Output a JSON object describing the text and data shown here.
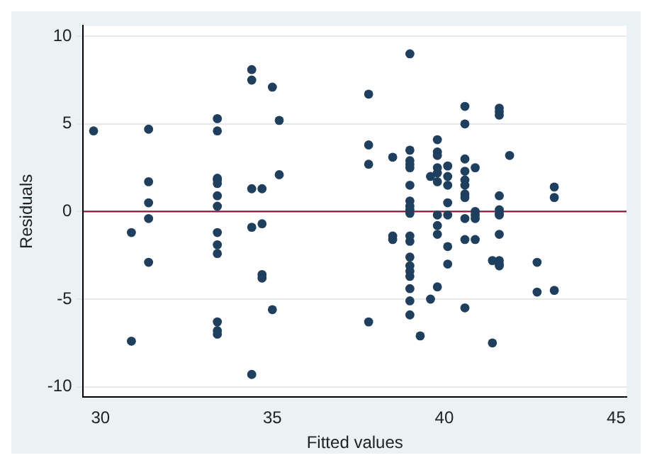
{
  "chart_data": {
    "type": "scatter",
    "xlabel": "Fitted values",
    "ylabel": "Residuals",
    "x": [
      29.8,
      30.9,
      30.9,
      31.4,
      31.4,
      31.4,
      31.4,
      31.4,
      33.4,
      33.4,
      33.4,
      33.4,
      33.4,
      33.4,
      33.4,
      33.4,
      33.4,
      33.4,
      33.4,
      33.4,
      33.4,
      34.4,
      34.4,
      34.4,
      34.4,
      34.4,
      34.7,
      34.7,
      34.7,
      34.7,
      35.0,
      35.0,
      35.2,
      35.2,
      37.8,
      37.8,
      37.8,
      37.8,
      38.5,
      38.5,
      38.5,
      39.0,
      39.0,
      39.0,
      39.0,
      39.0,
      39.0,
      39.0,
      39.0,
      39.0,
      39.0,
      39.0,
      39.0,
      39.0,
      39.0,
      39.0,
      39.0,
      39.0,
      39.0,
      39.0,
      39.3,
      39.6,
      39.6,
      39.8,
      39.8,
      39.8,
      39.8,
      39.8,
      39.8,
      39.8,
      39.8,
      39.8,
      39.8,
      40.1,
      40.1,
      40.1,
      40.1,
      40.1,
      40.1,
      40.1,
      40.6,
      40.6,
      40.6,
      40.6,
      40.6,
      40.6,
      40.6,
      40.6,
      40.6,
      40.6,
      40.6,
      40.9,
      40.9,
      40.9,
      40.9,
      40.9,
      41.4,
      41.4,
      41.6,
      41.6,
      41.6,
      41.6,
      41.6,
      41.6,
      41.6,
      41.6,
      41.6,
      41.6,
      41.6,
      41.9,
      42.7,
      42.7,
      43.2,
      43.2,
      43.2
    ],
    "values": [
      4.6,
      -1.2,
      -7.4,
      4.7,
      1.7,
      0.5,
      -0.4,
      -2.9,
      5.3,
      4.6,
      1.8,
      1.6,
      0.9,
      0.3,
      -1.2,
      -1.9,
      -2.4,
      -6.3,
      -6.8,
      -7.0,
      1.9,
      8.1,
      7.5,
      1.3,
      -0.9,
      -9.3,
      1.3,
      -0.7,
      -3.6,
      -3.8,
      7.1,
      -5.6,
      5.2,
      2.1,
      6.7,
      3.8,
      2.7,
      -6.3,
      3.1,
      -1.4,
      -1.6,
      9.0,
      3.5,
      2.9,
      2.7,
      2.5,
      1.5,
      0.6,
      0.3,
      0.1,
      -0.1,
      -1.4,
      -1.7,
      -2.6,
      -3.1,
      -3.4,
      -3.7,
      -4.4,
      -5.1,
      -5.9,
      -7.1,
      -5.0,
      2.0,
      4.1,
      3.4,
      3.2,
      2.5,
      2.2,
      1.7,
      -0.2,
      -0.8,
      -1.3,
      -4.3,
      2.6,
      2.0,
      1.5,
      0.5,
      -0.2,
      -2.0,
      -3.0,
      6.0,
      5.0,
      3.0,
      2.3,
      1.8,
      1.5,
      1.0,
      0.8,
      -0.4,
      -1.6,
      -5.5,
      2.5,
      0.0,
      -0.2,
      -0.4,
      -1.6,
      -2.8,
      -7.5,
      5.9,
      5.7,
      5.5,
      0.9,
      0.1,
      -0.1,
      -0.2,
      -1.3,
      -2.8,
      -3.0,
      -3.1,
      3.2,
      -2.9,
      -4.6,
      1.4,
      0.8,
      -4.5
    ],
    "color": "#1f3f5f",
    "marker": "circle",
    "xlim": [
      29.5,
      45.3
    ],
    "xticks": [
      30,
      35,
      40,
      45
    ],
    "ylim": [
      -10.6,
      10.6
    ],
    "yticks": [
      -10,
      -5,
      0,
      5,
      10
    ],
    "grid": "y",
    "legend": false,
    "ref_lines": [
      {
        "axis": "y",
        "value": 0,
        "color": "#8b1a3c"
      }
    ]
  }
}
